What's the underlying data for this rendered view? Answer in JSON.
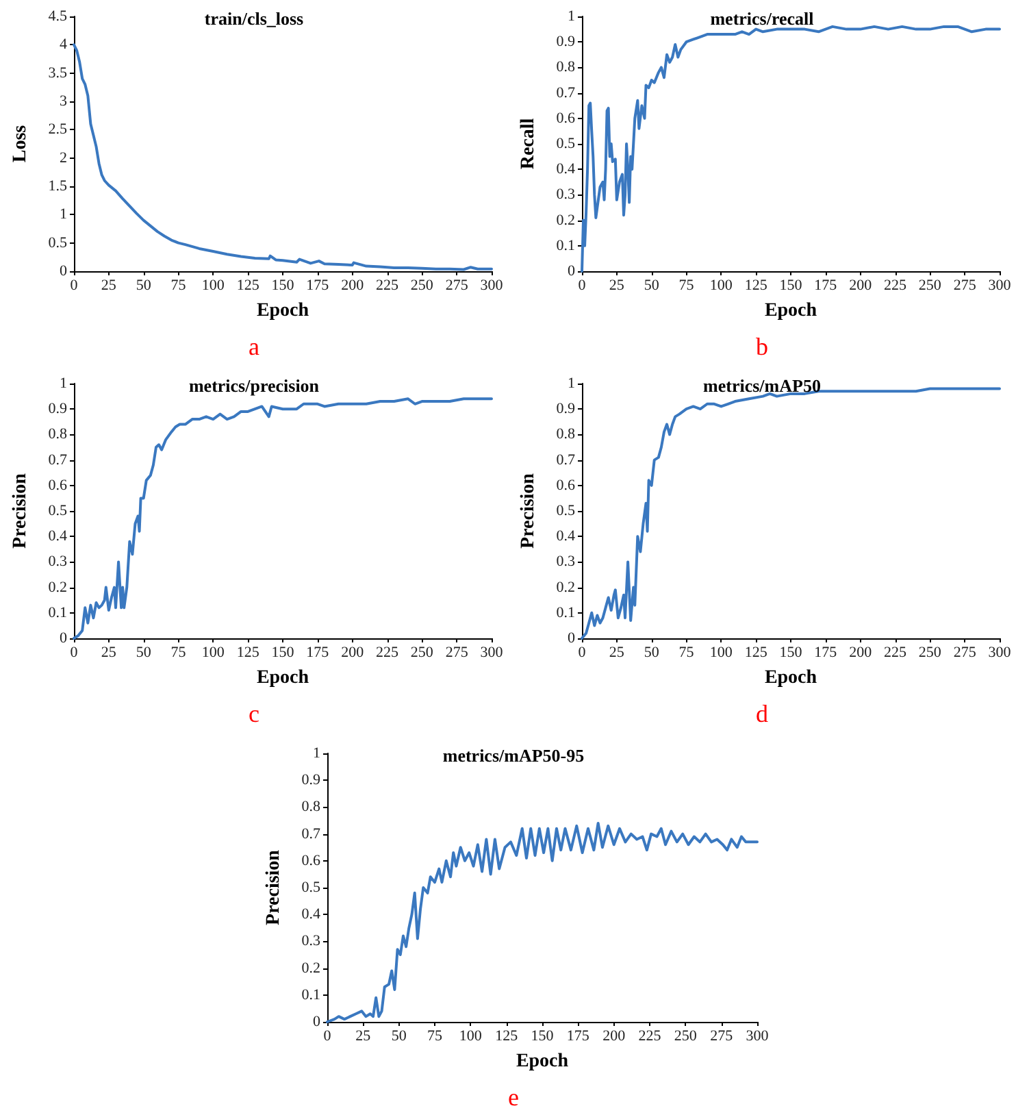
{
  "chart_data": [
    {
      "type": "line",
      "title": "train/cls_loss",
      "xlabel": "Epoch",
      "ylabel": "Loss",
      "annotations": [
        "a"
      ],
      "color": "#3a78c0",
      "xlim": [
        0,
        300
      ],
      "xticks": [
        0,
        25,
        50,
        75,
        100,
        125,
        150,
        175,
        200,
        225,
        250,
        275,
        300
      ],
      "ylim": [
        0,
        4.5
      ],
      "yticks": [
        0,
        0.5,
        1,
        1.5,
        2,
        2.5,
        3,
        3.5,
        4,
        4.5
      ],
      "grid": false,
      "marker": "none",
      "x": [
        0,
        2,
        4,
        6,
        8,
        10,
        12,
        14,
        16,
        18,
        20,
        22,
        25,
        30,
        35,
        40,
        45,
        50,
        55,
        60,
        65,
        70,
        75,
        80,
        90,
        100,
        110,
        120,
        130,
        140,
        141,
        145,
        150,
        160,
        162,
        170,
        176,
        180,
        190,
        200,
        201,
        210,
        220,
        230,
        240,
        250,
        260,
        270,
        280,
        285,
        290,
        300
      ],
      "values": [
        4.0,
        3.9,
        3.7,
        3.4,
        3.3,
        3.1,
        2.6,
        2.4,
        2.2,
        1.9,
        1.7,
        1.6,
        1.52,
        1.42,
        1.28,
        1.15,
        1.02,
        0.9,
        0.8,
        0.7,
        0.62,
        0.55,
        0.5,
        0.47,
        0.4,
        0.35,
        0.3,
        0.26,
        0.23,
        0.22,
        0.27,
        0.2,
        0.19,
        0.16,
        0.21,
        0.14,
        0.18,
        0.13,
        0.12,
        0.11,
        0.15,
        0.09,
        0.08,
        0.06,
        0.06,
        0.05,
        0.04,
        0.04,
        0.03,
        0.07,
        0.04,
        0.04
      ]
    },
    {
      "type": "line",
      "title": "metrics/recall",
      "xlabel": "Epoch",
      "ylabel": "Recall",
      "annotations": [
        "b"
      ],
      "color": "#3a78c0",
      "xlim": [
        0,
        300
      ],
      "xticks": [
        0,
        25,
        50,
        75,
        100,
        125,
        150,
        175,
        200,
        225,
        250,
        275,
        300
      ],
      "ylim": [
        0,
        1
      ],
      "yticks": [
        0,
        0.1,
        0.2,
        0.3,
        0.4,
        0.5,
        0.6,
        0.7,
        0.8,
        0.9,
        1
      ],
      "grid": false,
      "marker": "none",
      "x": [
        0,
        1,
        2,
        3,
        4,
        5,
        6,
        7,
        8,
        9,
        10,
        11,
        13,
        15,
        16,
        17,
        18,
        19,
        20,
        21,
        22,
        24,
        25,
        27,
        29,
        30,
        31,
        32,
        33,
        34,
        35,
        36,
        38,
        40,
        41,
        43,
        45,
        46,
        48,
        50,
        52,
        55,
        57,
        59,
        61,
        63,
        65,
        67,
        69,
        71,
        75,
        80,
        85,
        90,
        100,
        110,
        115,
        120,
        125,
        130,
        140,
        150,
        160,
        170,
        180,
        190,
        200,
        210,
        220,
        230,
        240,
        250,
        260,
        270,
        275,
        280,
        290,
        300
      ],
      "values": [
        0,
        0.2,
        0.1,
        0.23,
        0.4,
        0.65,
        0.66,
        0.55,
        0.45,
        0.3,
        0.21,
        0.25,
        0.33,
        0.35,
        0.28,
        0.4,
        0.63,
        0.64,
        0.45,
        0.5,
        0.43,
        0.44,
        0.28,
        0.35,
        0.38,
        0.22,
        0.3,
        0.5,
        0.4,
        0.27,
        0.45,
        0.4,
        0.6,
        0.67,
        0.56,
        0.65,
        0.6,
        0.73,
        0.72,
        0.75,
        0.74,
        0.78,
        0.8,
        0.76,
        0.85,
        0.82,
        0.84,
        0.89,
        0.84,
        0.87,
        0.9,
        0.91,
        0.92,
        0.93,
        0.93,
        0.93,
        0.94,
        0.93,
        0.95,
        0.94,
        0.95,
        0.95,
        0.95,
        0.94,
        0.96,
        0.95,
        0.95,
        0.96,
        0.95,
        0.96,
        0.95,
        0.95,
        0.96,
        0.96,
        0.95,
        0.94,
        0.95,
        0.95
      ]
    },
    {
      "type": "line",
      "title": "metrics/precision",
      "xlabel": "Epoch",
      "ylabel": "Precision",
      "annotations": [
        "c"
      ],
      "color": "#3a78c0",
      "xlim": [
        0,
        300
      ],
      "xticks": [
        0,
        25,
        50,
        75,
        100,
        125,
        150,
        175,
        200,
        225,
        250,
        275,
        300
      ],
      "ylim": [
        0,
        1
      ],
      "yticks": [
        0,
        0.1,
        0.2,
        0.3,
        0.4,
        0.5,
        0.6,
        0.7,
        0.8,
        0.9,
        1
      ],
      "grid": false,
      "marker": "none",
      "x": [
        0,
        3,
        6,
        8,
        10,
        12,
        14,
        16,
        18,
        20,
        22,
        23,
        25,
        27,
        29,
        30,
        32,
        34,
        35,
        36,
        38,
        40,
        42,
        44,
        46,
        47,
        48,
        50,
        52,
        55,
        57,
        59,
        61,
        63,
        66,
        70,
        73,
        76,
        80,
        85,
        90,
        95,
        100,
        105,
        110,
        115,
        120,
        125,
        130,
        135,
        140,
        142,
        150,
        160,
        165,
        170,
        175,
        180,
        190,
        200,
        210,
        220,
        230,
        240,
        245,
        250,
        260,
        270,
        280,
        290,
        300
      ],
      "values": [
        0,
        0.01,
        0.03,
        0.12,
        0.06,
        0.13,
        0.08,
        0.14,
        0.12,
        0.13,
        0.15,
        0.2,
        0.11,
        0.16,
        0.2,
        0.12,
        0.3,
        0.12,
        0.2,
        0.12,
        0.2,
        0.38,
        0.33,
        0.45,
        0.48,
        0.42,
        0.55,
        0.55,
        0.62,
        0.64,
        0.68,
        0.75,
        0.76,
        0.74,
        0.78,
        0.81,
        0.83,
        0.84,
        0.84,
        0.86,
        0.86,
        0.87,
        0.86,
        0.88,
        0.86,
        0.87,
        0.89,
        0.89,
        0.9,
        0.91,
        0.87,
        0.91,
        0.9,
        0.9,
        0.92,
        0.92,
        0.92,
        0.91,
        0.92,
        0.92,
        0.92,
        0.93,
        0.93,
        0.94,
        0.92,
        0.93,
        0.93,
        0.93,
        0.94,
        0.94,
        0.94
      ]
    },
    {
      "type": "line",
      "title": "metrics/mAP50",
      "xlabel": "Epoch",
      "ylabel": "Precision",
      "annotations": [
        "d"
      ],
      "color": "#3a78c0",
      "xlim": [
        0,
        300
      ],
      "xticks": [
        0,
        25,
        50,
        75,
        100,
        125,
        150,
        175,
        200,
        225,
        250,
        275,
        300
      ],
      "ylim": [
        0,
        1
      ],
      "yticks": [
        0,
        0.1,
        0.2,
        0.3,
        0.4,
        0.5,
        0.6,
        0.7,
        0.8,
        0.9,
        1
      ],
      "grid": false,
      "marker": "none",
      "x": [
        0,
        3,
        5,
        7,
        9,
        11,
        13,
        15,
        17,
        19,
        21,
        23,
        24,
        26,
        28,
        30,
        31,
        33,
        35,
        37,
        38,
        40,
        42,
        44,
        46,
        47,
        48,
        50,
        52,
        55,
        57,
        59,
        61,
        63,
        65,
        67,
        70,
        75,
        80,
        85,
        90,
        95,
        100,
        105,
        110,
        120,
        130,
        135,
        140,
        150,
        160,
        170,
        180,
        190,
        200,
        210,
        220,
        230,
        240,
        250,
        260,
        270,
        280,
        290,
        300
      ],
      "values": [
        0,
        0.02,
        0.06,
        0.1,
        0.05,
        0.09,
        0.06,
        0.08,
        0.12,
        0.16,
        0.11,
        0.17,
        0.19,
        0.08,
        0.12,
        0.17,
        0.08,
        0.3,
        0.07,
        0.2,
        0.13,
        0.4,
        0.34,
        0.45,
        0.53,
        0.42,
        0.62,
        0.6,
        0.7,
        0.71,
        0.75,
        0.81,
        0.84,
        0.8,
        0.84,
        0.87,
        0.88,
        0.9,
        0.91,
        0.9,
        0.92,
        0.92,
        0.91,
        0.92,
        0.93,
        0.94,
        0.95,
        0.96,
        0.95,
        0.96,
        0.96,
        0.97,
        0.97,
        0.97,
        0.97,
        0.97,
        0.97,
        0.97,
        0.97,
        0.98,
        0.98,
        0.98,
        0.98,
        0.98,
        0.98
      ]
    },
    {
      "type": "line",
      "title": "metrics/mAP50-95",
      "xlabel": "Epoch",
      "ylabel": "Precision",
      "annotations": [
        "e"
      ],
      "color": "#3a78c0",
      "xlim": [
        0,
        300
      ],
      "xticks": [
        0,
        25,
        50,
        75,
        100,
        125,
        150,
        175,
        200,
        225,
        250,
        275,
        300
      ],
      "ylim": [
        0,
        1
      ],
      "yticks": [
        0,
        0.1,
        0.2,
        0.3,
        0.4,
        0.5,
        0.6,
        0.7,
        0.8,
        0.9,
        1
      ],
      "grid": false,
      "marker": "none",
      "x": [
        0,
        5,
        8,
        12,
        16,
        20,
        24,
        27,
        30,
        32,
        34,
        36,
        38,
        40,
        43,
        45,
        47,
        49,
        51,
        53,
        55,
        57,
        59,
        61,
        63,
        65,
        67,
        70,
        72,
        75,
        78,
        80,
        83,
        86,
        88,
        90,
        93,
        96,
        99,
        102,
        105,
        108,
        111,
        114,
        117,
        120,
        124,
        128,
        132,
        136,
        139,
        142,
        145,
        148,
        151,
        154,
        157,
        160,
        163,
        166,
        170,
        174,
        178,
        182,
        186,
        189,
        192,
        196,
        200,
        204,
        208,
        212,
        216,
        220,
        223,
        226,
        230,
        233,
        236,
        240,
        244,
        248,
        252,
        256,
        260,
        264,
        268,
        272,
        276,
        279,
        282,
        286,
        289,
        292,
        300
      ],
      "values": [
        0,
        0.01,
        0.02,
        0.01,
        0.02,
        0.03,
        0.04,
        0.02,
        0.03,
        0.02,
        0.09,
        0.02,
        0.04,
        0.13,
        0.14,
        0.19,
        0.12,
        0.27,
        0.25,
        0.32,
        0.28,
        0.35,
        0.4,
        0.48,
        0.31,
        0.42,
        0.5,
        0.48,
        0.54,
        0.52,
        0.57,
        0.52,
        0.6,
        0.54,
        0.63,
        0.58,
        0.65,
        0.6,
        0.63,
        0.58,
        0.66,
        0.56,
        0.68,
        0.55,
        0.68,
        0.57,
        0.65,
        0.67,
        0.62,
        0.72,
        0.61,
        0.72,
        0.62,
        0.72,
        0.63,
        0.72,
        0.6,
        0.72,
        0.64,
        0.72,
        0.64,
        0.73,
        0.63,
        0.72,
        0.64,
        0.74,
        0.65,
        0.73,
        0.66,
        0.72,
        0.67,
        0.7,
        0.68,
        0.69,
        0.64,
        0.7,
        0.69,
        0.72,
        0.66,
        0.71,
        0.67,
        0.7,
        0.66,
        0.69,
        0.67,
        0.7,
        0.67,
        0.68,
        0.66,
        0.64,
        0.68,
        0.65,
        0.69,
        0.67,
        0.67
      ]
    }
  ]
}
